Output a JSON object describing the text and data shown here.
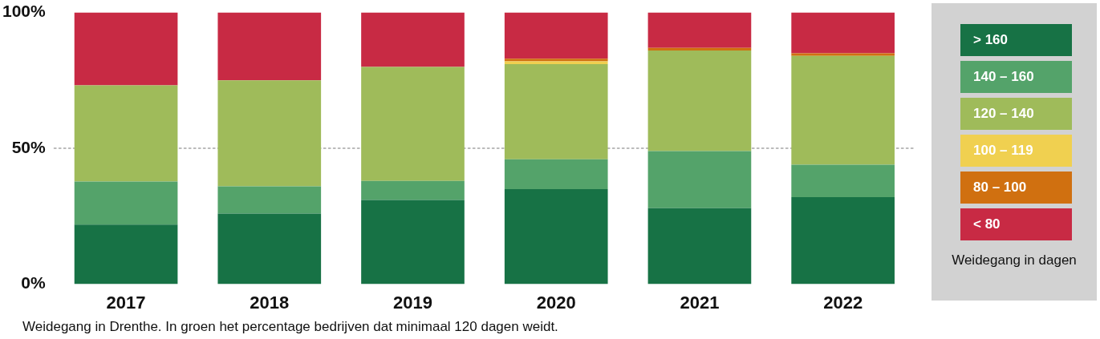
{
  "chart_data": {
    "type": "bar",
    "stacked": true,
    "categories": [
      "2017",
      "2018",
      "2019",
      "2020",
      "2021",
      "2022"
    ],
    "series": [
      {
        "name": "> 160",
        "color": "#177245",
        "values": [
          21.9,
          26,
          31,
          35,
          28,
          32
        ]
      },
      {
        "name": "140 – 160",
        "color": "#54a36a",
        "values": [
          15.9,
          10,
          7,
          11,
          21,
          12
        ]
      },
      {
        "name": "120 – 140",
        "color": "#9fbb5a",
        "values": [
          35.4,
          39,
          42,
          35,
          37,
          40
        ]
      },
      {
        "name": "100 – 119",
        "color": "#f0d050",
        "values": [
          0,
          0,
          0,
          1,
          0,
          0
        ]
      },
      {
        "name": "80 – 100",
        "color": "#d07010",
        "values": [
          0,
          0,
          0,
          1,
          1,
          1
        ]
      },
      {
        "name": "< 80",
        "color": "#c82a44",
        "values": [
          26.8,
          25,
          20,
          17,
          13,
          15
        ]
      }
    ],
    "ylim": [
      0,
      100
    ],
    "yticks": [
      {
        "value": 0,
        "label": "0%"
      },
      {
        "value": 50,
        "label": "50%"
      },
      {
        "value": 100,
        "label": "100%"
      }
    ],
    "ref_lines": [
      {
        "axis": "y",
        "value": 50,
        "label": null,
        "line_style": "dotted",
        "color": "#bbbbbb"
      }
    ],
    "legend": "right",
    "legend_title": "Weidegang in dagen",
    "annotations": [
      "Weidegang in Drenthe. In groen het percentage bedrijven dat minimaal 120 dagen weidt."
    ]
  }
}
